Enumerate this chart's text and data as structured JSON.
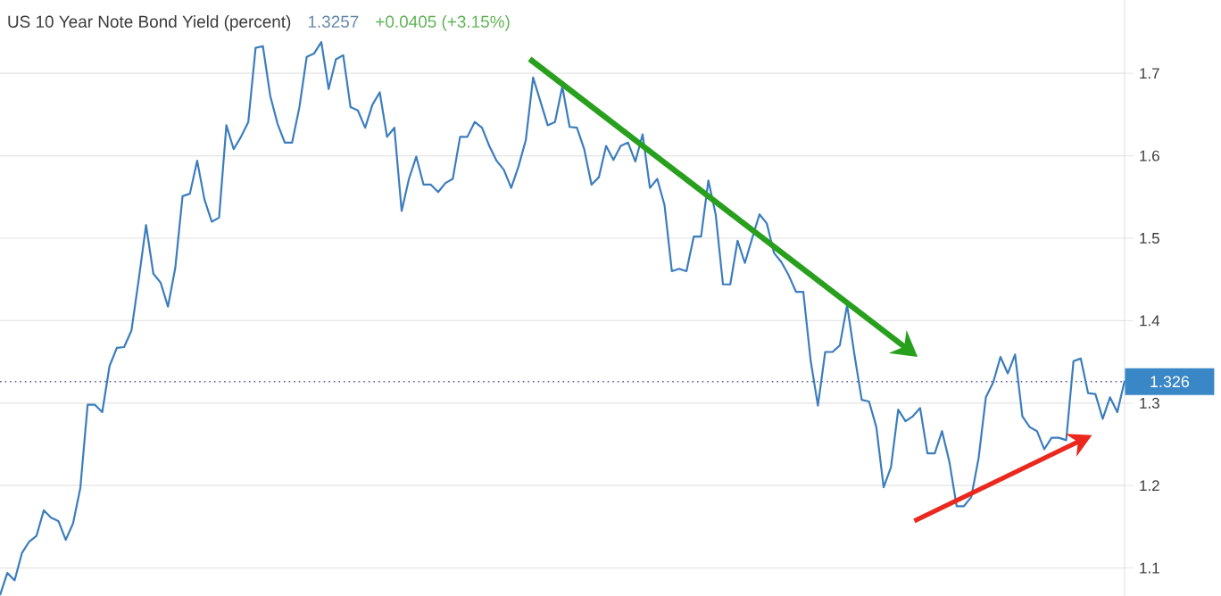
{
  "chart_data": {
    "type": "line",
    "title": "US 10 Year Note Bond Yield (percent)",
    "annotations": [
      "1.3257",
      "+0.0405 (+3.15%)"
    ],
    "categories": [
      null,
      null,
      null,
      null,
      null,
      null,
      null,
      null,
      null,
      null,
      null,
      null,
      null,
      null,
      null,
      null,
      null,
      null,
      null,
      null,
      null,
      null,
      null,
      null,
      null,
      null,
      null,
      null,
      null,
      null,
      null,
      null,
      null,
      null,
      null,
      null,
      null,
      null,
      null,
      null,
      null,
      null,
      null,
      null,
      null,
      null,
      null,
      null,
      null,
      null,
      null,
      null,
      null,
      null,
      null,
      null,
      null,
      null,
      null,
      null,
      null,
      null,
      null,
      null,
      null,
      null,
      null,
      null,
      null,
      null,
      null,
      null,
      null,
      null,
      null,
      null,
      null,
      null,
      null,
      null,
      null,
      null,
      null,
      null,
      null,
      null,
      null,
      null,
      null,
      null,
      null,
      null,
      null,
      null,
      null,
      null,
      null,
      null,
      null,
      null,
      null,
      null,
      null,
      null,
      null,
      null,
      null,
      null,
      null,
      null,
      null,
      null,
      null,
      null,
      null,
      null,
      null,
      null,
      null,
      null,
      null,
      null,
      null,
      null,
      null,
      null,
      null,
      null,
      null,
      null,
      null,
      null,
      null,
      null,
      null,
      null,
      null,
      null,
      null,
      null,
      null,
      null,
      null,
      null,
      null,
      null,
      null,
      null,
      null,
      null,
      null,
      null,
      null,
      null,
      null
    ],
    "series": [
      {
        "color": "#3b7dbd",
        "values": [
          1.067,
          1.094,
          1.085,
          1.118,
          1.132,
          1.139,
          1.17,
          1.161,
          1.157,
          1.134,
          1.154,
          1.197,
          1.298,
          1.298,
          1.289,
          1.345,
          1.367,
          1.368,
          1.388,
          1.45,
          1.516,
          1.457,
          1.446,
          1.417,
          1.464,
          1.551,
          1.554,
          1.594,
          1.547,
          1.52,
          1.525,
          1.637,
          1.608,
          1.623,
          1.641,
          1.731,
          1.733,
          1.673,
          1.639,
          1.616,
          1.616,
          1.659,
          1.72,
          1.724,
          1.738,
          1.681,
          1.717,
          1.722,
          1.659,
          1.655,
          1.634,
          1.662,
          1.677,
          1.623,
          1.634,
          1.533,
          1.572,
          1.599,
          1.565,
          1.565,
          1.556,
          1.567,
          1.572,
          1.623,
          1.623,
          1.641,
          1.634,
          1.612,
          1.594,
          1.583,
          1.561,
          1.587,
          1.619,
          1.695,
          1.666,
          1.637,
          1.641,
          1.684,
          1.635,
          1.634,
          1.608,
          1.565,
          1.574,
          1.612,
          1.595,
          1.612,
          1.616,
          1.593,
          1.626,
          1.561,
          1.572,
          1.54,
          1.46,
          1.463,
          1.46,
          1.502,
          1.502,
          1.57,
          1.529,
          1.444,
          1.444,
          1.497,
          1.47,
          1.5,
          1.529,
          1.518,
          1.482,
          1.471,
          1.455,
          1.435,
          1.435,
          1.352,
          1.297,
          1.362,
          1.362,
          1.37,
          1.419,
          1.359,
          1.304,
          1.302,
          1.271,
          1.198,
          1.222,
          1.292,
          1.278,
          1.284,
          1.294,
          1.239,
          1.239,
          1.266,
          1.229,
          1.175,
          1.175,
          1.186,
          1.233,
          1.307,
          1.325,
          1.356,
          1.336,
          1.359,
          1.284,
          1.271,
          1.266,
          1.244,
          1.258,
          1.258,
          1.255,
          1.351,
          1.354,
          1.312,
          1.311,
          1.281,
          1.307,
          1.289,
          1.327
        ]
      }
    ],
    "ylim": [
      1.066,
      1.789
    ],
    "yticks": [
      1.1,
      1.2,
      1.3,
      1.4,
      1.5,
      1.6,
      1.7
    ],
    "grid": "y",
    "tick_labels": "y",
    "ref_lines": [
      {
        "axis": "y",
        "value": 1.326,
        "label": "1.326",
        "color": "#5a5aa0",
        "line_style": "dotted"
      }
    ]
  }
}
